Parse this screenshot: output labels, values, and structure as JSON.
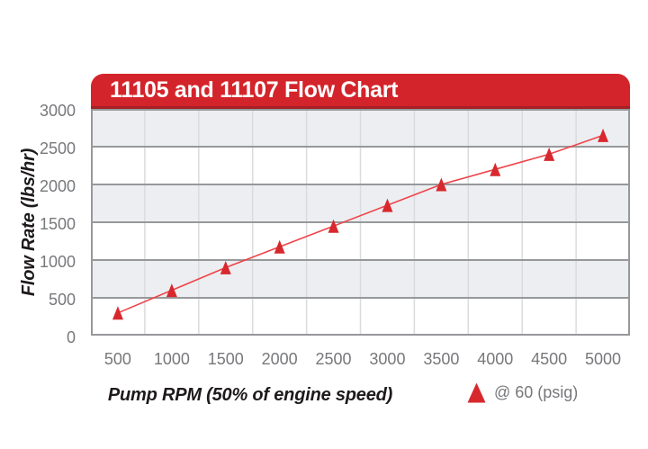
{
  "figure": {
    "legend": {
      "marker_icon": "red-triangle-up-icon",
      "label": "@ 60 (psig)"
    }
  },
  "chart_data": {
    "type": "line",
    "title": "11105 and 11107 Flow Chart",
    "xlabel": "Pump RPM (50% of engine speed)",
    "ylabel": "Flow Rate (lbs/hr)",
    "x": [
      500,
      1000,
      1500,
      2000,
      2500,
      3000,
      3500,
      4000,
      4500,
      5000
    ],
    "series": [
      {
        "name": "@ 60 (psig)",
        "marker": "triangle-up",
        "color": "#D7282E",
        "values": [
          300,
          600,
          900,
          1175,
          1450,
          1725,
          2000,
          2200,
          2400,
          2650
        ]
      }
    ],
    "ylim": [
      0,
      3000
    ],
    "yticks": [
      0,
      500,
      1000,
      1500,
      2000,
      2500,
      3000
    ],
    "grid": "horizontal gridlines every 500 with alternating gray/white bands; light vertical gridlines at category boundaries",
    "legend_position": "below chart, bottom-right"
  },
  "colors": {
    "banner_red": "#D4242B",
    "banner_red_dark": "#A42025",
    "title_text": "#FFFFFF",
    "marker_red": "#D7282E",
    "line_red": "#EE4449",
    "band_gray": "#EDEEF1",
    "grid_dark": "#97989A",
    "grid_light": "#D9DBDD",
    "tick_text": "#77787B",
    "axis_title_text": "#1E1A1B",
    "background": "#FFFFFF"
  }
}
